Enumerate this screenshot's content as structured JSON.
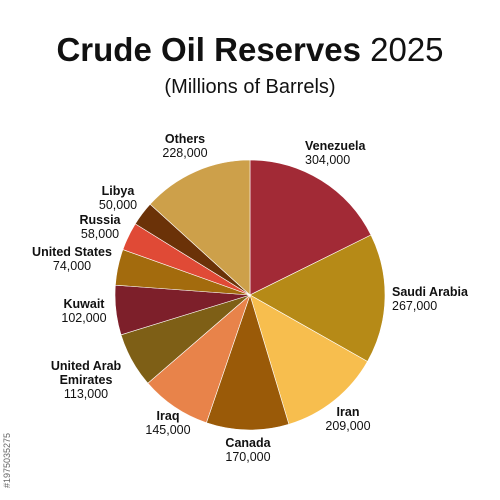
{
  "title_bold": "Crude Oil Reserves",
  "title_year": "2025",
  "subtitle": "(Millions of Barrels)",
  "side_id": "#1975035275",
  "chart_data": {
    "type": "pie",
    "title": "Crude Oil Reserves 2025",
    "subtitle": "(Millions of Barrels)",
    "slices": [
      {
        "label": "Venezuela",
        "value": 304000,
        "value_label": "304,000",
        "color": "#A22A36"
      },
      {
        "label": "Saudi Arabia",
        "value": 267000,
        "value_label": "267,000",
        "color": "#B68A17"
      },
      {
        "label": "Iran",
        "value": 209000,
        "value_label": "209,000",
        "color": "#F7BE4E"
      },
      {
        "label": "Canada",
        "value": 170000,
        "value_label": "170,000",
        "color": "#9A5A08"
      },
      {
        "label": "Iraq",
        "value": 145000,
        "value_label": "145,000",
        "color": "#E8834A"
      },
      {
        "label": "United Arab Emirates",
        "value": 113000,
        "value_label": "113,000",
        "color": "#7E5F16"
      },
      {
        "label": "Kuwait",
        "value": 102000,
        "value_label": "102,000",
        "color": "#7D1F2A"
      },
      {
        "label": "United States",
        "value": 74000,
        "value_label": "74,000",
        "color": "#A36B0D"
      },
      {
        "label": "Russia",
        "value": 58000,
        "value_label": "58,000",
        "color": "#E04A36"
      },
      {
        "label": "Libya",
        "value": 50000,
        "value_label": "50,000",
        "color": "#6B3208"
      },
      {
        "label": "Others",
        "value": 228000,
        "value_label": "228,000",
        "color": "#CDA04A"
      }
    ]
  }
}
